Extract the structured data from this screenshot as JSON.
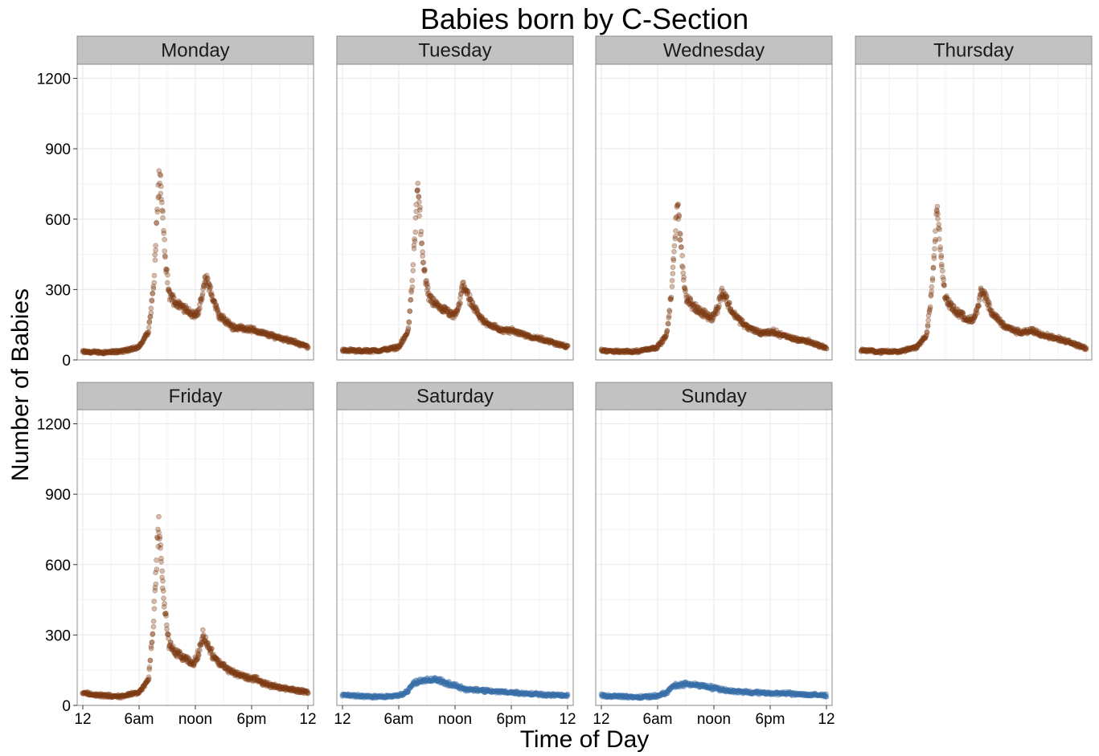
{
  "chart_data": {
    "type": "scatter",
    "title": "Babies born by C-Section",
    "xlabel": "Time of Day",
    "ylabel": "Number of Babies",
    "x_unit": "hours after midnight",
    "xlim": [
      -0.6,
      24.6
    ],
    "ylim": [
      0,
      1260
    ],
    "x_ticks": [
      0,
      6,
      12,
      18,
      24
    ],
    "x_tick_labels": [
      "12",
      "6am",
      "noon",
      "6pm",
      "12"
    ],
    "y_ticks": [
      0,
      300,
      600,
      900,
      1200
    ],
    "y_tick_labels": [
      "0",
      "300",
      "600",
      "900",
      "1200"
    ],
    "grid": true,
    "legend": "none",
    "colors": {
      "weekday": "#7f3b14",
      "weekend": "#3a6fa8",
      "strip_fill": "#c2c2c2",
      "grid": "#ebebeb",
      "panel_border": "#8c8c8c"
    },
    "panels": [
      {
        "name": "Monday",
        "color": "weekday",
        "trend": [
          [
            0,
            35
          ],
          [
            2,
            32
          ],
          [
            4,
            36
          ],
          [
            6,
            55
          ],
          [
            7,
            120
          ],
          [
            7.6,
            330
          ],
          [
            8,
            700
          ],
          [
            8.2,
            790
          ],
          [
            8.4,
            680
          ],
          [
            8.8,
            420
          ],
          [
            9.2,
            280
          ],
          [
            10,
            240
          ],
          [
            11,
            220
          ],
          [
            11.8,
            190
          ],
          [
            12.4,
            210
          ],
          [
            13,
            330
          ],
          [
            13.3,
            345
          ],
          [
            13.7,
            280
          ],
          [
            14.5,
            190
          ],
          [
            16,
            140
          ],
          [
            18,
            130
          ],
          [
            19.5,
            110
          ],
          [
            21,
            95
          ],
          [
            23,
            70
          ],
          [
            24,
            55
          ]
        ]
      },
      {
        "name": "Tuesday",
        "color": "weekday",
        "trend": [
          [
            0,
            42
          ],
          [
            2,
            38
          ],
          [
            4,
            40
          ],
          [
            6,
            55
          ],
          [
            7,
            120
          ],
          [
            7.4,
            300
          ],
          [
            7.8,
            600
          ],
          [
            8,
            740
          ],
          [
            8.3,
            600
          ],
          [
            8.7,
            380
          ],
          [
            9.2,
            270
          ],
          [
            10,
            230
          ],
          [
            11,
            210
          ],
          [
            11.8,
            185
          ],
          [
            12.4,
            220
          ],
          [
            12.8,
            320
          ],
          [
            13.2,
            300
          ],
          [
            13.8,
            230
          ],
          [
            15,
            165
          ],
          [
            17,
            125
          ],
          [
            18.2,
            125
          ],
          [
            20,
            100
          ],
          [
            22,
            80
          ],
          [
            24,
            55
          ]
        ]
      },
      {
        "name": "Wednesday",
        "color": "weekday",
        "trend": [
          [
            0,
            40
          ],
          [
            2,
            35
          ],
          [
            4,
            38
          ],
          [
            6,
            55
          ],
          [
            7,
            110
          ],
          [
            7.5,
            300
          ],
          [
            7.9,
            560
          ],
          [
            8.1,
            670
          ],
          [
            8.3,
            580
          ],
          [
            8.6,
            420
          ],
          [
            9,
            270
          ],
          [
            10,
            220
          ],
          [
            11,
            195
          ],
          [
            11.8,
            180
          ],
          [
            12.4,
            220
          ],
          [
            12.8,
            290
          ],
          [
            13.2,
            270
          ],
          [
            14,
            200
          ],
          [
            15.5,
            140
          ],
          [
            17,
            115
          ],
          [
            18.3,
            120
          ],
          [
            20,
            95
          ],
          [
            22,
            80
          ],
          [
            24,
            50
          ]
        ]
      },
      {
        "name": "Thursday",
        "color": "weekday",
        "trend": [
          [
            0,
            42
          ],
          [
            2,
            35
          ],
          [
            4,
            36
          ],
          [
            6,
            55
          ],
          [
            7,
            110
          ],
          [
            7.5,
            280
          ],
          [
            7.9,
            520
          ],
          [
            8.1,
            640
          ],
          [
            8.3,
            560
          ],
          [
            8.6,
            400
          ],
          [
            9,
            260
          ],
          [
            10,
            210
          ],
          [
            11,
            185
          ],
          [
            11.8,
            165
          ],
          [
            12.4,
            210
          ],
          [
            12.8,
            290
          ],
          [
            13.2,
            270
          ],
          [
            14,
            195
          ],
          [
            15.5,
            140
          ],
          [
            17,
            115
          ],
          [
            18.3,
            125
          ],
          [
            20,
            100
          ],
          [
            22,
            80
          ],
          [
            24,
            50
          ]
        ]
      },
      {
        "name": "Friday",
        "color": "weekday",
        "trend": [
          [
            0,
            52
          ],
          [
            2,
            42
          ],
          [
            4,
            38
          ],
          [
            6,
            55
          ],
          [
            7,
            110
          ],
          [
            7.5,
            330
          ],
          [
            7.9,
            640
          ],
          [
            8.1,
            780
          ],
          [
            8.3,
            650
          ],
          [
            8.7,
            430
          ],
          [
            9.2,
            260
          ],
          [
            10,
            220
          ],
          [
            11,
            195
          ],
          [
            11.8,
            175
          ],
          [
            12.4,
            230
          ],
          [
            12.8,
            300
          ],
          [
            13.2,
            270
          ],
          [
            14,
            200
          ],
          [
            15.5,
            150
          ],
          [
            17,
            125
          ],
          [
            18.5,
            110
          ],
          [
            20,
            85
          ],
          [
            22,
            70
          ],
          [
            24,
            55
          ]
        ]
      },
      {
        "name": "Saturday",
        "color": "weekend",
        "trend": [
          [
            0,
            45
          ],
          [
            2,
            40
          ],
          [
            4,
            36
          ],
          [
            6,
            42
          ],
          [
            7,
            60
          ],
          [
            7.5,
            95
          ],
          [
            8.5,
            105
          ],
          [
            10,
            110
          ],
          [
            11.5,
            90
          ],
          [
            13,
            70
          ],
          [
            16,
            60
          ],
          [
            18,
            55
          ],
          [
            20,
            50
          ],
          [
            22,
            45
          ],
          [
            24,
            42
          ]
        ]
      },
      {
        "name": "Sunday",
        "color": "weekend",
        "trend": [
          [
            0,
            42
          ],
          [
            2,
            38
          ],
          [
            4,
            35
          ],
          [
            6,
            40
          ],
          [
            7,
            55
          ],
          [
            7.5,
            80
          ],
          [
            8.5,
            90
          ],
          [
            10,
            88
          ],
          [
            11.5,
            78
          ],
          [
            13,
            65
          ],
          [
            16,
            55
          ],
          [
            18,
            52
          ],
          [
            20,
            50
          ],
          [
            22,
            45
          ],
          [
            24,
            42
          ]
        ]
      }
    ]
  }
}
